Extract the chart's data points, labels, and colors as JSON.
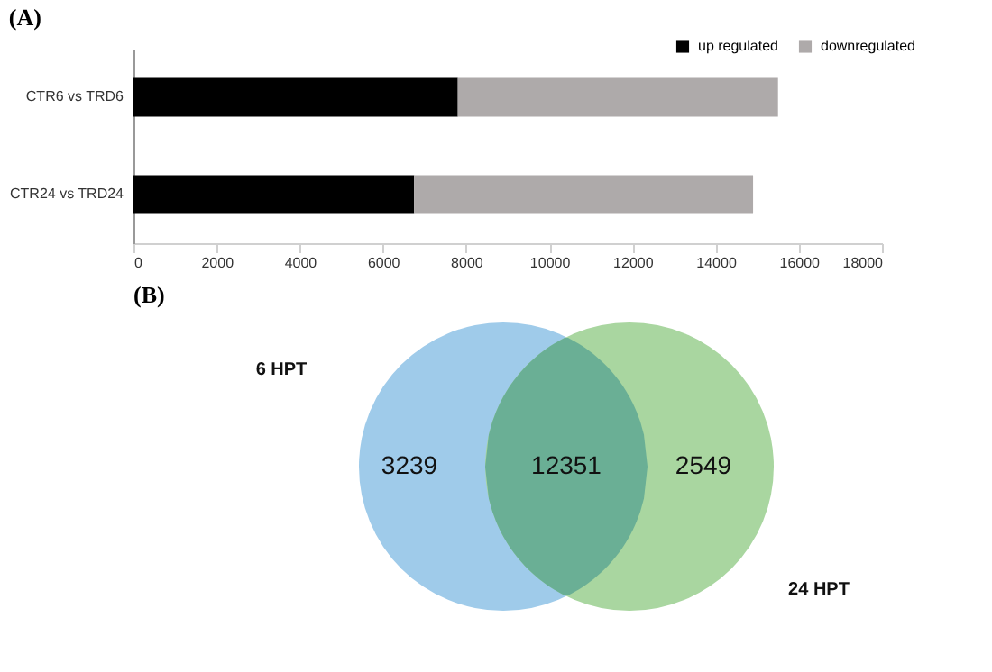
{
  "chart_data": [
    {
      "type": "bar",
      "title": "(A)",
      "orientation": "horizontal",
      "stacked": true,
      "legend": "top right",
      "categories": [
        "CTR6 vs TRD6",
        "CTR24 vs TRD24"
      ],
      "series": [
        {
          "name": "up regulated",
          "color": "#000000",
          "values": [
            7800,
            6750
          ]
        },
        {
          "name": "downregulated",
          "color": "#aeaaaa",
          "values": [
            7700,
            8150
          ]
        }
      ],
      "xlim": [
        0,
        18000
      ],
      "xticks": [
        0,
        2000,
        4000,
        6000,
        8000,
        10000,
        12000,
        14000,
        16000,
        18000
      ]
    },
    {
      "type": "other",
      "title": "(B)",
      "categories": [
        null,
        null,
        null
      ],
      "values": [
        3239,
        12351,
        2549
      ],
      "colors": [
        "#9fcbea",
        "#6aaf95",
        "#a9d6a0"
      ],
      "annotations": [
        "6 HPT",
        "24 HPT"
      ],
      "data_labels": true
    }
  ]
}
